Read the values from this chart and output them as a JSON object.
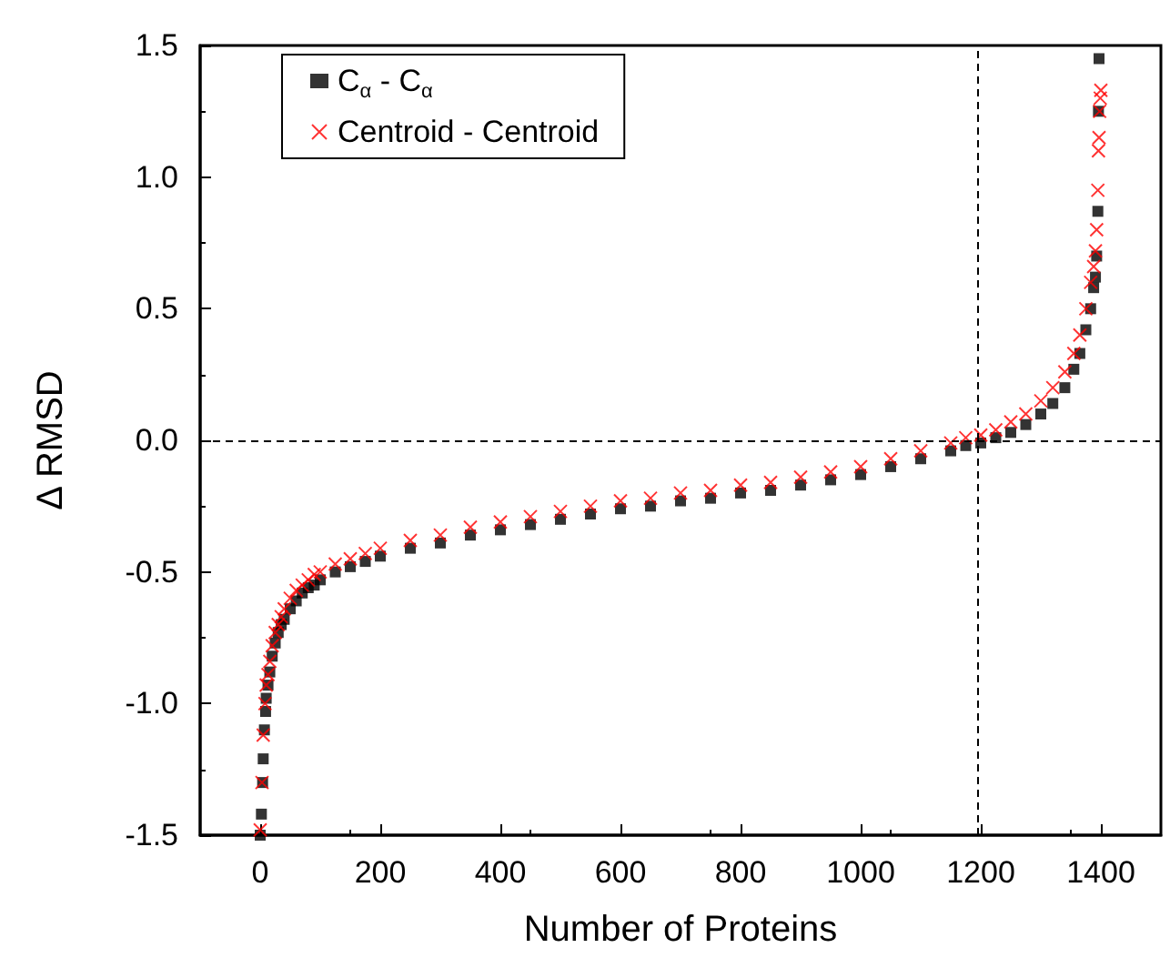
{
  "chart_data": {
    "type": "scatter",
    "xlabel": "Number of Proteins",
    "ylabel": "Δ RMSD",
    "xlim": [
      -100,
      1500
    ],
    "xticks": [
      0,
      200,
      400,
      600,
      800,
      1000,
      1200,
      1400
    ],
    "ylim": [
      -1.5,
      1.5
    ],
    "yticks": [
      {
        "value": -1.5,
        "label": "-1.5"
      },
      {
        "value": -1,
        "label": "-1.0"
      },
      {
        "value": -0.5,
        "label": "-0.5"
      },
      {
        "value": 0,
        "label": "0.0"
      },
      {
        "value": 0.5,
        "label": "0.5"
      },
      {
        "value": 1,
        "label": "1.0"
      },
      {
        "value": 1.5,
        "label": "1.5"
      }
    ],
    "grid": false,
    "legend": "top left",
    "ref_lines": [
      {
        "axis": "y",
        "value": 0,
        "color": "#000000",
        "line_style": "dashed"
      },
      {
        "axis": "x",
        "value": 1195,
        "color": "#000000",
        "line_style": "dashed"
      }
    ],
    "series": [
      {
        "name": "C$_{α}$ - C$_{α}$",
        "color": "#000000",
        "marker": "square",
        "x": [
          0,
          2,
          4,
          5,
          7,
          9,
          10,
          13,
          16,
          20,
          25,
          30,
          35,
          40,
          50,
          60,
          70,
          80,
          90,
          100,
          125,
          150,
          175,
          200,
          250,
          300,
          350,
          400,
          450,
          500,
          550,
          600,
          650,
          700,
          750,
          800,
          850,
          900,
          950,
          1000,
          1050,
          1100,
          1150,
          1175,
          1200,
          1225,
          1250,
          1275,
          1300,
          1320,
          1340,
          1355,
          1365,
          1375,
          1383,
          1388,
          1391,
          1393,
          1395,
          1396,
          1397
        ],
        "values": [
          -1.5,
          -1.42,
          -1.3,
          -1.21,
          -1.1,
          -1.03,
          -0.98,
          -0.93,
          -0.88,
          -0.82,
          -0.77,
          -0.73,
          -0.7,
          -0.68,
          -0.64,
          -0.61,
          -0.58,
          -0.56,
          -0.55,
          -0.53,
          -0.5,
          -0.48,
          -0.46,
          -0.44,
          -0.41,
          -0.39,
          -0.36,
          -0.34,
          -0.32,
          -0.3,
          -0.28,
          -0.26,
          -0.25,
          -0.23,
          -0.22,
          -0.2,
          -0.19,
          -0.17,
          -0.15,
          -0.13,
          -0.1,
          -0.07,
          -0.04,
          -0.02,
          -0.01,
          0.01,
          0.03,
          0.06,
          0.1,
          0.14,
          0.2,
          0.27,
          0.33,
          0.42,
          0.5,
          0.58,
          0.62,
          0.7,
          0.87,
          1.25,
          1.45
        ]
      },
      {
        "name": "Centroid - Centroid",
        "color": "#ff0000",
        "marker": "cross",
        "x": [
          0,
          3,
          5,
          8,
          10,
          13,
          16,
          20,
          25,
          30,
          35,
          40,
          50,
          60,
          70,
          80,
          90,
          100,
          125,
          150,
          175,
          200,
          250,
          300,
          350,
          400,
          450,
          500,
          550,
          600,
          650,
          700,
          750,
          800,
          850,
          900,
          950,
          1000,
          1050,
          1100,
          1150,
          1175,
          1200,
          1225,
          1250,
          1275,
          1300,
          1320,
          1340,
          1355,
          1365,
          1375,
          1383,
          1388,
          1391,
          1393,
          1395,
          1396,
          1397,
          1398,
          1399,
          1400
        ],
        "values": [
          -1.48,
          -1.3,
          -1.12,
          -1.0,
          -0.93,
          -0.89,
          -0.84,
          -0.78,
          -0.73,
          -0.7,
          -0.67,
          -0.64,
          -0.6,
          -0.57,
          -0.55,
          -0.53,
          -0.51,
          -0.5,
          -0.47,
          -0.45,
          -0.43,
          -0.41,
          -0.38,
          -0.36,
          -0.33,
          -0.31,
          -0.29,
          -0.27,
          -0.25,
          -0.23,
          -0.22,
          -0.2,
          -0.19,
          -0.17,
          -0.16,
          -0.14,
          -0.12,
          -0.1,
          -0.07,
          -0.04,
          -0.01,
          0.01,
          0.02,
          0.04,
          0.07,
          0.1,
          0.15,
          0.2,
          0.26,
          0.33,
          0.4,
          0.5,
          0.6,
          0.66,
          0.72,
          0.8,
          0.95,
          1.1,
          1.15,
          1.25,
          1.3,
          1.33
        ]
      }
    ]
  }
}
